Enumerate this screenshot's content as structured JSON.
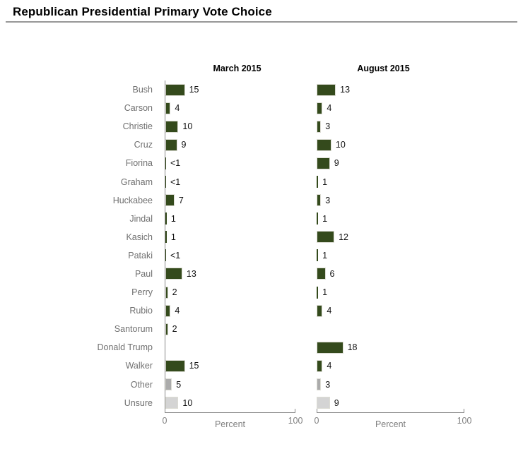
{
  "title": "Republican Presidential Primary Vote Choice",
  "chart_data": {
    "type": "bar",
    "orientation": "horizontal",
    "title": "Republican Presidential Primary Vote Choice",
    "panel_titles": [
      "March 2015",
      "August 2015"
    ],
    "categories": [
      "Bush",
      "Carson",
      "Christie",
      "Cruz",
      "Fiorina",
      "Graham",
      "Huckabee",
      "Jindal",
      "Kasich",
      "Pataki",
      "Paul",
      "Perry",
      "Rubio",
      "Santorum",
      "Donald Trump",
      "Walker",
      "Other",
      "Unsure"
    ],
    "series": [
      {
        "name": "March 2015",
        "labels": [
          "15",
          "4",
          "10",
          "9",
          "<1",
          "<1",
          "7",
          "1",
          "1",
          "<1",
          "13",
          "2",
          "4",
          "2",
          "",
          "15",
          "5",
          "10"
        ],
        "values": [
          15,
          4,
          10,
          9,
          0.5,
          0.5,
          7,
          1,
          1,
          0.5,
          13,
          2,
          4,
          2,
          null,
          15,
          5,
          10
        ]
      },
      {
        "name": "August 2015",
        "labels": [
          "13",
          "4",
          "3",
          "10",
          "9",
          "1",
          "3",
          "1",
          "12",
          "1",
          "6",
          "1",
          "4",
          "",
          "18",
          "4",
          "3",
          "9"
        ],
        "values": [
          13,
          4,
          3,
          10,
          9,
          1,
          3,
          1,
          12,
          1,
          6,
          1,
          4,
          null,
          18,
          4,
          3,
          9
        ]
      }
    ],
    "category_colors": [
      "green",
      "green",
      "green",
      "green",
      "green",
      "green",
      "green",
      "green",
      "green",
      "green",
      "green",
      "green",
      "green",
      "green",
      "green",
      "green",
      "gray",
      "lightgray"
    ],
    "xlabel": "Percent",
    "xlim": [
      0,
      100
    ],
    "xtick_labels": [
      "0",
      "100"
    ],
    "axis_ticks_at": [
      0,
      100
    ],
    "grid": false,
    "legend": false,
    "palette": {
      "green": "#344a1c",
      "gray": "#ababab",
      "lightgray": "#d4d4d4",
      "bar_border": "#dcdcd4",
      "axis": "#878787",
      "axis_label_gray": "#808080",
      "category_label_gray": "#707070",
      "value_label": "#111111",
      "title_rule": "#979797"
    }
  }
}
